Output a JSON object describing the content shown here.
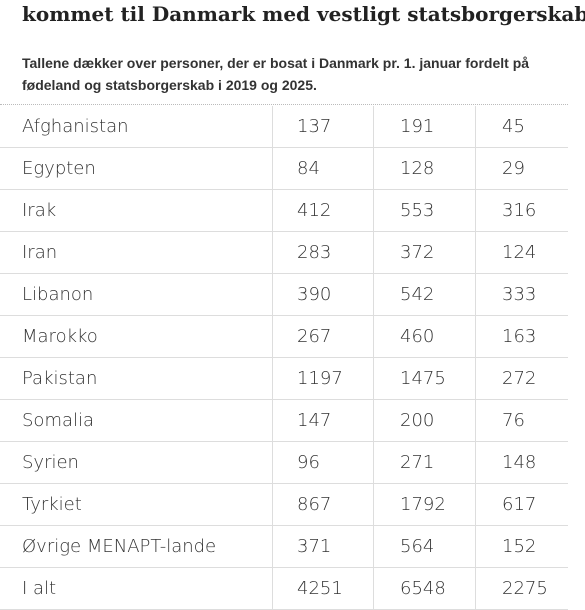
{
  "header": {
    "title": "kommet til Danmark med vestligt statsborgerskab",
    "subtitle": "Tallene dækker over personer, der er bosat i Danmark pr. 1. januar fordelt på fødeland og statsborgerskab i 2019 og 2025."
  },
  "table": {
    "rows": [
      [
        "Afghanistan",
        "137",
        "191",
        "45"
      ],
      [
        "Egypten",
        "84",
        "128",
        "29"
      ],
      [
        "Irak",
        "412",
        "553",
        "316"
      ],
      [
        "Iran",
        "283",
        "372",
        "124"
      ],
      [
        "Libanon",
        "390",
        "542",
        "333"
      ],
      [
        "Marokko",
        "267",
        "460",
        "163"
      ],
      [
        "Pakistan",
        "1197",
        "1475",
        "272"
      ],
      [
        "Somalia",
        "147",
        "200",
        "76"
      ],
      [
        "Syrien",
        "96",
        "271",
        "148"
      ],
      [
        "Tyrkiet",
        "867",
        "1792",
        "617"
      ],
      [
        "Øvrige MENAPT-lande",
        "371",
        "564",
        "152"
      ],
      [
        "I alt",
        "4251",
        "6548",
        "2275"
      ]
    ]
  }
}
